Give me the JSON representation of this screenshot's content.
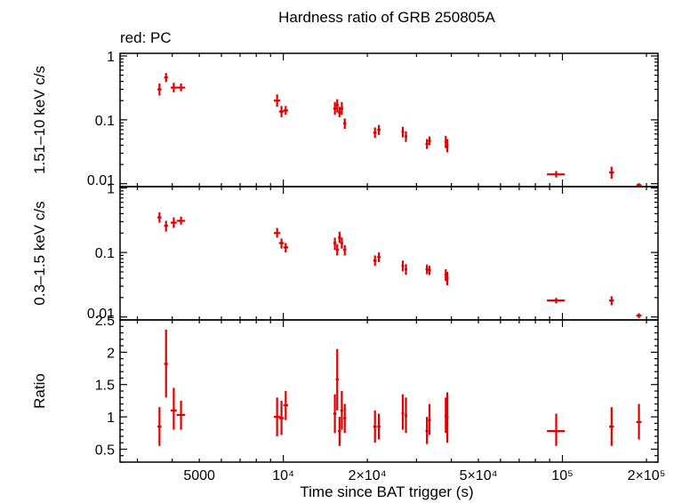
{
  "chart_data": {
    "title": "Hardness ratio of GRB 250805A",
    "legend_note": "red: PC",
    "xlabel": "Time since BAT trigger (s)",
    "x_scale": "log",
    "xlim": [
      2600,
      220000
    ],
    "x_ticks": [
      {
        "value": 5000,
        "label": "5000"
      },
      {
        "value": 10000,
        "label": "10⁴"
      },
      {
        "value": 20000,
        "label": "2×10⁴"
      },
      {
        "value": 50000,
        "label": "5×10⁴"
      },
      {
        "value": 100000,
        "label": "10⁵"
      },
      {
        "value": 200000,
        "label": "2×10⁵"
      }
    ],
    "color": "#e00000",
    "panels": [
      {
        "id": "hard",
        "type": "scatter",
        "ylabel": "1.51–10 keV c/s",
        "y_scale": "log",
        "ylim": [
          0.009,
          1.1
        ],
        "y_ticks": [
          {
            "value": 1,
            "label": "1"
          },
          {
            "value": 0.1,
            "label": "0.1"
          },
          {
            "value": 0.01,
            "label": "0.01"
          }
        ],
        "points": [
          {
            "x": 3600,
            "xlo": 3540,
            "xhi": 3660,
            "y": 0.3,
            "ylo": 0.24,
            "yhi": 0.37
          },
          {
            "x": 3800,
            "xlo": 3740,
            "xhi": 3860,
            "y": 0.46,
            "ylo": 0.39,
            "yhi": 0.54
          },
          {
            "x": 4050,
            "xlo": 3950,
            "xhi": 4150,
            "y": 0.32,
            "ylo": 0.27,
            "yhi": 0.38
          },
          {
            "x": 4300,
            "xlo": 4150,
            "xhi": 4450,
            "y": 0.32,
            "ylo": 0.28,
            "yhi": 0.37
          },
          {
            "x": 9500,
            "xlo": 9250,
            "xhi": 9750,
            "y": 0.2,
            "ylo": 0.16,
            "yhi": 0.25
          },
          {
            "x": 9850,
            "xlo": 9650,
            "xhi": 10050,
            "y": 0.135,
            "ylo": 0.11,
            "yhi": 0.165
          },
          {
            "x": 10200,
            "xlo": 10000,
            "xhi": 10400,
            "y": 0.14,
            "ylo": 0.12,
            "yhi": 0.165
          },
          {
            "x": 15300,
            "xlo": 15100,
            "xhi": 15500,
            "y": 0.15,
            "ylo": 0.12,
            "yhi": 0.19
          },
          {
            "x": 15600,
            "xlo": 15400,
            "xhi": 15800,
            "y": 0.17,
            "ylo": 0.13,
            "yhi": 0.21
          },
          {
            "x": 15900,
            "xlo": 15700,
            "xhi": 16100,
            "y": 0.13,
            "ylo": 0.11,
            "yhi": 0.16
          },
          {
            "x": 16200,
            "xlo": 16000,
            "xhi": 16400,
            "y": 0.15,
            "ylo": 0.12,
            "yhi": 0.19
          },
          {
            "x": 16600,
            "xlo": 16400,
            "xhi": 16800,
            "y": 0.088,
            "ylo": 0.072,
            "yhi": 0.105
          },
          {
            "x": 21300,
            "xlo": 21000,
            "xhi": 21600,
            "y": 0.063,
            "ylo": 0.052,
            "yhi": 0.076
          },
          {
            "x": 22000,
            "xlo": 21700,
            "xhi": 22300,
            "y": 0.07,
            "ylo": 0.058,
            "yhi": 0.083
          },
          {
            "x": 26800,
            "xlo": 26500,
            "xhi": 27100,
            "y": 0.065,
            "ylo": 0.053,
            "yhi": 0.078
          },
          {
            "x": 27500,
            "xlo": 27200,
            "xhi": 27800,
            "y": 0.055,
            "ylo": 0.045,
            "yhi": 0.066
          },
          {
            "x": 32700,
            "xlo": 32300,
            "xhi": 33100,
            "y": 0.042,
            "ylo": 0.035,
            "yhi": 0.05
          },
          {
            "x": 33400,
            "xlo": 33000,
            "xhi": 33800,
            "y": 0.047,
            "ylo": 0.04,
            "yhi": 0.055
          },
          {
            "x": 38200,
            "xlo": 37800,
            "xhi": 38600,
            "y": 0.045,
            "ylo": 0.036,
            "yhi": 0.056
          },
          {
            "x": 38700,
            "xlo": 38300,
            "xhi": 39100,
            "y": 0.04,
            "ylo": 0.031,
            "yhi": 0.05
          },
          {
            "x": 95000,
            "xlo": 88000,
            "xhi": 102000,
            "y": 0.014,
            "ylo": 0.0125,
            "yhi": 0.0158
          },
          {
            "x": 150000,
            "xlo": 147000,
            "xhi": 153000,
            "y": 0.015,
            "ylo": 0.012,
            "yhi": 0.0185
          },
          {
            "x": 188000,
            "xlo": 184000,
            "xhi": 192000,
            "y": 0.0095,
            "ylo": 0.0088,
            "yhi": 0.0102
          }
        ]
      },
      {
        "id": "soft",
        "type": "scatter",
        "ylabel": "0.3–1.5 keV c/s",
        "y_scale": "log",
        "ylim": [
          0.009,
          1.05
        ],
        "y_ticks": [
          {
            "value": 1,
            "label": "1"
          },
          {
            "value": 0.1,
            "label": "0.1"
          },
          {
            "value": 0.01,
            "label": "0.01"
          }
        ],
        "points": [
          {
            "x": 3600,
            "xlo": 3540,
            "xhi": 3660,
            "y": 0.35,
            "ylo": 0.29,
            "yhi": 0.42
          },
          {
            "x": 3800,
            "xlo": 3740,
            "xhi": 3860,
            "y": 0.26,
            "ylo": 0.21,
            "yhi": 0.31
          },
          {
            "x": 4050,
            "xlo": 3950,
            "xhi": 4150,
            "y": 0.29,
            "ylo": 0.24,
            "yhi": 0.35
          },
          {
            "x": 4300,
            "xlo": 4150,
            "xhi": 4450,
            "y": 0.31,
            "ylo": 0.27,
            "yhi": 0.36
          },
          {
            "x": 9500,
            "xlo": 9250,
            "xhi": 9750,
            "y": 0.2,
            "ylo": 0.17,
            "yhi": 0.24
          },
          {
            "x": 9850,
            "xlo": 9650,
            "xhi": 10050,
            "y": 0.14,
            "ylo": 0.115,
            "yhi": 0.165
          },
          {
            "x": 10200,
            "xlo": 10000,
            "xhi": 10400,
            "y": 0.12,
            "ylo": 0.1,
            "yhi": 0.14
          },
          {
            "x": 15300,
            "xlo": 15100,
            "xhi": 15500,
            "y": 0.14,
            "ylo": 0.11,
            "yhi": 0.17
          },
          {
            "x": 15600,
            "xlo": 15400,
            "xhi": 15800,
            "y": 0.11,
            "ylo": 0.09,
            "yhi": 0.135
          },
          {
            "x": 15900,
            "xlo": 15700,
            "xhi": 16100,
            "y": 0.17,
            "ylo": 0.14,
            "yhi": 0.21
          },
          {
            "x": 16200,
            "xlo": 16000,
            "xhi": 16400,
            "y": 0.14,
            "ylo": 0.115,
            "yhi": 0.17
          },
          {
            "x": 16600,
            "xlo": 16400,
            "xhi": 16800,
            "y": 0.11,
            "ylo": 0.09,
            "yhi": 0.13
          },
          {
            "x": 21300,
            "xlo": 21000,
            "xhi": 21600,
            "y": 0.075,
            "ylo": 0.062,
            "yhi": 0.09
          },
          {
            "x": 22000,
            "xlo": 21700,
            "xhi": 22300,
            "y": 0.085,
            "ylo": 0.071,
            "yhi": 0.1
          },
          {
            "x": 26800,
            "xlo": 26500,
            "xhi": 27100,
            "y": 0.062,
            "ylo": 0.051,
            "yhi": 0.075
          },
          {
            "x": 27500,
            "xlo": 27200,
            "xhi": 27800,
            "y": 0.055,
            "ylo": 0.045,
            "yhi": 0.066
          },
          {
            "x": 32700,
            "xlo": 32300,
            "xhi": 33100,
            "y": 0.055,
            "ylo": 0.046,
            "yhi": 0.065
          },
          {
            "x": 33400,
            "xlo": 33000,
            "xhi": 33800,
            "y": 0.053,
            "ylo": 0.045,
            "yhi": 0.062
          },
          {
            "x": 38200,
            "xlo": 37800,
            "xhi": 38600,
            "y": 0.045,
            "ylo": 0.036,
            "yhi": 0.055
          },
          {
            "x": 38700,
            "xlo": 38300,
            "xhi": 39100,
            "y": 0.04,
            "ylo": 0.031,
            "yhi": 0.05
          },
          {
            "x": 95000,
            "xlo": 88000,
            "xhi": 102000,
            "y": 0.018,
            "ylo": 0.0162,
            "yhi": 0.0198
          },
          {
            "x": 150000,
            "xlo": 147000,
            "xhi": 153000,
            "y": 0.018,
            "ylo": 0.0152,
            "yhi": 0.021
          },
          {
            "x": 188000,
            "xlo": 184000,
            "xhi": 192000,
            "y": 0.0105,
            "ylo": 0.0096,
            "yhi": 0.0114
          }
        ]
      },
      {
        "id": "ratio",
        "type": "scatter",
        "ylabel": "Ratio",
        "y_scale": "linear",
        "ylim": [
          0.3,
          2.5
        ],
        "y_ticks": [
          {
            "value": 2.5,
            "label": "2.5"
          },
          {
            "value": 2,
            "label": "2"
          },
          {
            "value": 1.5,
            "label": "1.5"
          },
          {
            "value": 1,
            "label": "1"
          },
          {
            "value": 0.5,
            "label": "0.5"
          }
        ],
        "points": [
          {
            "x": 3600,
            "xlo": 3540,
            "xhi": 3660,
            "y": 0.85,
            "ylo": 0.55,
            "yhi": 1.15
          },
          {
            "x": 3800,
            "xlo": 3740,
            "xhi": 3860,
            "y": 1.82,
            "ylo": 1.3,
            "yhi": 2.35
          },
          {
            "x": 4050,
            "xlo": 3950,
            "xhi": 4150,
            "y": 1.1,
            "ylo": 0.8,
            "yhi": 1.45
          },
          {
            "x": 4300,
            "xlo": 4150,
            "xhi": 4450,
            "y": 1.03,
            "ylo": 0.8,
            "yhi": 1.25
          },
          {
            "x": 9500,
            "xlo": 9250,
            "xhi": 9750,
            "y": 1.0,
            "ylo": 0.7,
            "yhi": 1.3
          },
          {
            "x": 9850,
            "xlo": 9650,
            "xhi": 10050,
            "y": 0.98,
            "ylo": 0.72,
            "yhi": 1.25
          },
          {
            "x": 10200,
            "xlo": 10000,
            "xhi": 10400,
            "y": 1.18,
            "ylo": 0.95,
            "yhi": 1.4
          },
          {
            "x": 15300,
            "xlo": 15100,
            "xhi": 15500,
            "y": 1.05,
            "ylo": 0.75,
            "yhi": 1.35
          },
          {
            "x": 15600,
            "xlo": 15400,
            "xhi": 15800,
            "y": 1.58,
            "ylo": 1.1,
            "yhi": 2.05
          },
          {
            "x": 15900,
            "xlo": 15700,
            "xhi": 16100,
            "y": 0.78,
            "ylo": 0.55,
            "yhi": 1.0
          },
          {
            "x": 16200,
            "xlo": 16000,
            "xhi": 16400,
            "y": 1.1,
            "ylo": 0.8,
            "yhi": 1.4
          },
          {
            "x": 16600,
            "xlo": 16400,
            "xhi": 16800,
            "y": 0.98,
            "ylo": 0.75,
            "yhi": 1.2
          },
          {
            "x": 21300,
            "xlo": 21000,
            "xhi": 21600,
            "y": 0.85,
            "ylo": 0.6,
            "yhi": 1.1
          },
          {
            "x": 22000,
            "xlo": 21700,
            "xhi": 22300,
            "y": 0.85,
            "ylo": 0.65,
            "yhi": 1.05
          },
          {
            "x": 26800,
            "xlo": 26500,
            "xhi": 27100,
            "y": 1.05,
            "ylo": 0.8,
            "yhi": 1.35
          },
          {
            "x": 27500,
            "xlo": 27200,
            "xhi": 27800,
            "y": 1.02,
            "ylo": 0.75,
            "yhi": 1.3
          },
          {
            "x": 32700,
            "xlo": 32300,
            "xhi": 33100,
            "y": 0.78,
            "ylo": 0.58,
            "yhi": 1.0
          },
          {
            "x": 33400,
            "xlo": 33000,
            "xhi": 33800,
            "y": 0.95,
            "ylo": 0.72,
            "yhi": 1.2
          },
          {
            "x": 38200,
            "xlo": 37800,
            "xhi": 38600,
            "y": 1.02,
            "ylo": 0.75,
            "yhi": 1.3
          },
          {
            "x": 38700,
            "xlo": 38300,
            "xhi": 39100,
            "y": 1.0,
            "ylo": 0.6,
            "yhi": 1.38
          },
          {
            "x": 95000,
            "xlo": 88000,
            "xhi": 102000,
            "y": 0.78,
            "ylo": 0.55,
            "yhi": 1.05
          },
          {
            "x": 150000,
            "xlo": 147000,
            "xhi": 153000,
            "y": 0.85,
            "ylo": 0.55,
            "yhi": 1.15
          },
          {
            "x": 188000,
            "xlo": 184000,
            "xhi": 192000,
            "y": 0.92,
            "ylo": 0.65,
            "yhi": 1.2
          }
        ]
      }
    ]
  }
}
